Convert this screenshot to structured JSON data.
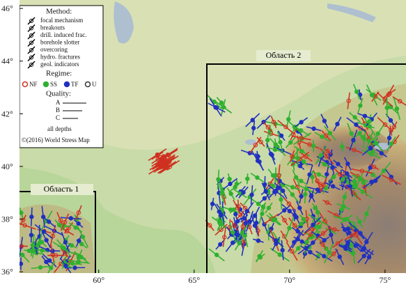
{
  "map": {
    "xlim": [
      55.85,
      76.1
    ],
    "ylim": [
      35.95,
      46.32
    ],
    "xticks": [
      {
        "value": 60,
        "label": "60°"
      },
      {
        "value": 65,
        "label": "65°"
      },
      {
        "value": 70,
        "label": "70°"
      },
      {
        "value": 75,
        "label": "75°"
      }
    ],
    "yticks": [
      {
        "value": 36,
        "label": "36°"
      },
      {
        "value": 38,
        "label": "38°"
      },
      {
        "value": 40,
        "label": "40°"
      },
      {
        "value": 42,
        "label": "42°"
      },
      {
        "value": 44,
        "label": "44°"
      },
      {
        "value": 46,
        "label": "46°"
      }
    ],
    "regions": [
      "Область 1",
      "Область 2"
    ]
  },
  "legend": {
    "method_title": "Method:",
    "methods": [
      "focal mechanism",
      "breakouts",
      "drill. induced frac.",
      "borehole slotter",
      "overcoring",
      "hydro. fractures",
      "geol. indicators"
    ],
    "regime_title": "Regime:",
    "regimes": [
      "NF",
      "SS",
      "TF",
      "U"
    ],
    "quality_title": "Quality:",
    "qualities": [
      "A",
      "B",
      "C"
    ],
    "depth": "all depths",
    "credit": "©(2016) World Stress Map"
  }
}
